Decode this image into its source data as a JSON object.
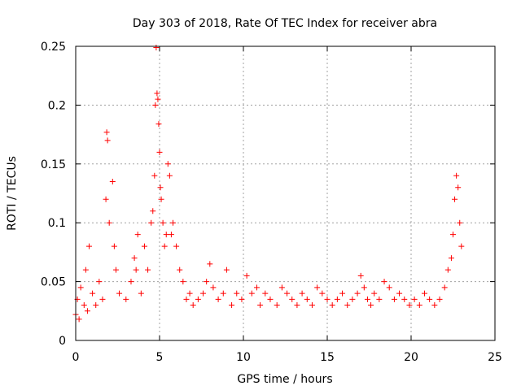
{
  "chart_data": {
    "type": "scatter",
    "title": "Day 303 of 2018, Rate Of TEC Index for receiver abra",
    "xlabel": "GPS time / hours",
    "ylabel": "ROTI / TECUs",
    "xlim": [
      0,
      25
    ],
    "ylim": [
      0,
      0.25
    ],
    "x_ticks": [
      "0",
      "5",
      "10",
      "15",
      "20",
      "25"
    ],
    "y_ticks": [
      "0",
      "0.05",
      "0.1",
      "0.15",
      "0.2",
      "0.25"
    ],
    "grid": true,
    "marker": "+",
    "color": "#ff0000",
    "series": [
      {
        "name": "",
        "x": [
          0.0,
          0.1,
          0.2,
          0.3,
          0.5,
          0.6,
          0.7,
          0.8,
          1.0,
          1.2,
          1.4,
          1.6,
          1.8,
          1.85,
          1.9,
          2.0,
          2.2,
          2.3,
          2.4,
          2.6,
          3.0,
          3.3,
          3.5,
          3.6,
          3.7,
          3.9,
          4.1,
          4.3,
          4.5,
          4.6,
          4.7,
          4.75,
          4.8,
          4.85,
          4.9,
          4.95,
          5.0,
          5.05,
          5.1,
          5.2,
          5.3,
          5.4,
          5.5,
          5.6,
          5.7,
          5.8,
          6.0,
          6.2,
          6.4,
          6.6,
          6.8,
          7.0,
          7.3,
          7.6,
          7.8,
          8.0,
          8.2,
          8.5,
          8.8,
          9.0,
          9.3,
          9.6,
          9.9,
          10.2,
          10.5,
          10.8,
          11.0,
          11.3,
          11.6,
          12.0,
          12.3,
          12.6,
          12.9,
          13.2,
          13.5,
          13.8,
          14.1,
          14.4,
          14.7,
          15.0,
          15.3,
          15.6,
          15.9,
          16.2,
          16.5,
          16.8,
          17.0,
          17.2,
          17.4,
          17.6,
          17.8,
          18.1,
          18.4,
          18.7,
          19.0,
          19.3,
          19.6,
          19.9,
          20.2,
          20.5,
          20.8,
          21.1,
          21.4,
          21.7,
          22.0,
          22.2,
          22.4,
          22.5,
          22.6,
          22.7,
          22.8,
          22.9,
          23.0
        ],
        "y": [
          0.022,
          0.035,
          0.018,
          0.045,
          0.03,
          0.06,
          0.025,
          0.08,
          0.04,
          0.03,
          0.05,
          0.035,
          0.12,
          0.177,
          0.17,
          0.1,
          0.135,
          0.08,
          0.06,
          0.04,
          0.035,
          0.05,
          0.07,
          0.06,
          0.09,
          0.04,
          0.08,
          0.06,
          0.1,
          0.11,
          0.14,
          0.2,
          0.249,
          0.21,
          0.205,
          0.184,
          0.16,
          0.13,
          0.12,
          0.1,
          0.08,
          0.09,
          0.15,
          0.14,
          0.09,
          0.1,
          0.08,
          0.06,
          0.05,
          0.035,
          0.04,
          0.03,
          0.035,
          0.04,
          0.05,
          0.065,
          0.045,
          0.035,
          0.04,
          0.06,
          0.03,
          0.04,
          0.035,
          0.055,
          0.04,
          0.045,
          0.03,
          0.04,
          0.035,
          0.03,
          0.045,
          0.04,
          0.035,
          0.03,
          0.04,
          0.035,
          0.03,
          0.045,
          0.04,
          0.035,
          0.03,
          0.035,
          0.04,
          0.03,
          0.035,
          0.04,
          0.055,
          0.045,
          0.035,
          0.03,
          0.04,
          0.035,
          0.05,
          0.045,
          0.035,
          0.04,
          0.035,
          0.03,
          0.035,
          0.03,
          0.04,
          0.035,
          0.03,
          0.035,
          0.045,
          0.06,
          0.07,
          0.09,
          0.12,
          0.14,
          0.13,
          0.1,
          0.08
        ]
      }
    ]
  }
}
